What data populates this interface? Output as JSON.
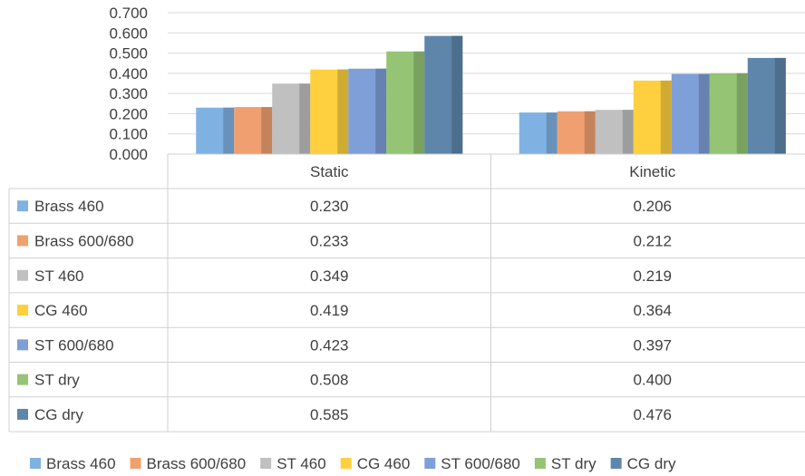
{
  "chart_data": {
    "type": "bar",
    "title": "",
    "xlabel": "",
    "ylabel": "",
    "categories": [
      "Static",
      "Kinetic"
    ],
    "ylim": [
      0,
      0.7
    ],
    "yticks": [
      "0.000",
      "0.100",
      "0.200",
      "0.300",
      "0.400",
      "0.500",
      "0.600",
      "0.700"
    ],
    "grid": true,
    "legend_position": "bottom",
    "data_table": true,
    "series": [
      {
        "name": "Brass 460",
        "color": "#7fb2e2",
        "values": [
          0.23,
          0.206
        ],
        "labels": [
          "0.230",
          "0.206"
        ]
      },
      {
        "name": "Brass 600/680",
        "color": "#f0a070",
        "values": [
          0.233,
          0.212
        ],
        "labels": [
          "0.233",
          "0.212"
        ]
      },
      {
        "name": "ST  460",
        "color": "#c0c0c0",
        "values": [
          0.349,
          0.219
        ],
        "labels": [
          "0.349",
          "0.219"
        ]
      },
      {
        "name": "CG 460",
        "color": "#fed03f",
        "values": [
          0.419,
          0.364
        ],
        "labels": [
          "0.419",
          "0.364"
        ]
      },
      {
        "name": "ST 600/680",
        "color": "#7e9fd8",
        "values": [
          0.423,
          0.397
        ],
        "labels": [
          "0.423",
          "0.397"
        ]
      },
      {
        "name": "ST dry",
        "color": "#94c474",
        "values": [
          0.508,
          0.4
        ],
        "labels": [
          "0.508",
          "0.400"
        ]
      },
      {
        "name": "CG dry",
        "color": "#5e86ab",
        "values": [
          0.585,
          0.476
        ],
        "labels": [
          "0.585",
          "0.476"
        ]
      }
    ]
  }
}
